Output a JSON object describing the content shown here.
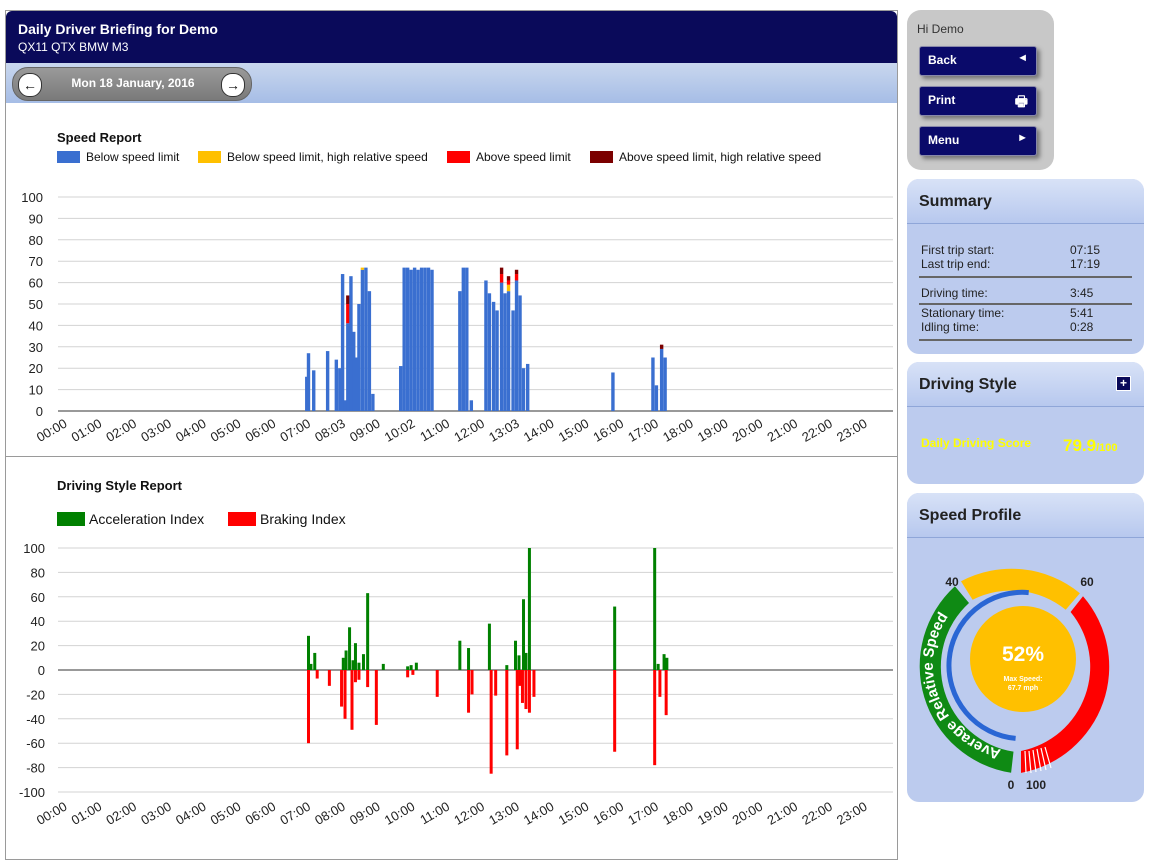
{
  "header": {
    "title": "Daily Driver Briefing for Demo",
    "vehicle": "QX11 QTX BMW M3"
  },
  "date_nav": {
    "date": "Mon 18 January, 2016",
    "prev_icon": "arrow-left-icon",
    "next_icon": "arrow-right-icon"
  },
  "nav": {
    "greeting": "Hi Demo",
    "buttons": [
      {
        "label": "Back",
        "icon": "triangle-left-icon",
        "glyph": "◄"
      },
      {
        "label": "Print",
        "icon": "printer-icon",
        "glyph": "🖶"
      },
      {
        "label": "Menu",
        "icon": "triangle-right-icon",
        "glyph": "►"
      }
    ]
  },
  "summary": {
    "title": "Summary",
    "rows": [
      {
        "label": "First trip start:",
        "value": "07:15"
      },
      {
        "label": "Last trip end:",
        "value": "17:19"
      },
      {
        "label": "Driving time:",
        "value": "3:45"
      },
      {
        "label": "Stationary time:",
        "value": "5:41"
      },
      {
        "label": "Idling time:",
        "value": "0:28"
      }
    ]
  },
  "driving_style": {
    "title": "Driving Style",
    "score_label": "Daily Driving Score",
    "score": "79.9",
    "score_max": "/100",
    "expand_icon": "plus-icon"
  },
  "speed_profile": {
    "title": "Speed Profile",
    "gauge_label": "Average Relative Speed",
    "percent": "52%",
    "max_speed_label": "Max Speed:",
    "max_speed_value": "67.7 mph",
    "percent_value": 52,
    "scale_labels": [
      "0",
      "40",
      "60",
      "100"
    ]
  },
  "colors": {
    "below": "#3a6fd0",
    "below_high": "#ffc000",
    "above": "#ff0000",
    "above_high": "#7b0000",
    "accel": "#008000",
    "brake": "#ff0000",
    "header": "#0a0a5a",
    "score": "#ffff00"
  },
  "chart_data": [
    {
      "type": "bar",
      "title": "Speed Report",
      "legend": [
        "Below speed limit",
        "Below speed limit, high relative speed",
        "Above speed limit",
        "Above speed limit, high relative speed"
      ],
      "ylim": [
        0,
        100
      ],
      "yticks": [
        0,
        10,
        20,
        30,
        40,
        50,
        60,
        70,
        80,
        90,
        100
      ],
      "xticks": [
        "00:00",
        "01:00",
        "02:00",
        "03:00",
        "04:00",
        "05:00",
        "06:00",
        "07:00",
        "08:03",
        "09:00",
        "10:02",
        "11:00",
        "12:00",
        "13:03",
        "14:00",
        "15:00",
        "16:00",
        "17:00",
        "18:00",
        "19:00",
        "20:00",
        "21:00",
        "22:00",
        "23:00"
      ],
      "bars": [
        {
          "t": 7.15,
          "v": 16
        },
        {
          "t": 7.2,
          "v": 27
        },
        {
          "t": 7.35,
          "v": 19
        },
        {
          "t": 7.75,
          "v": 28
        },
        {
          "t": 8.0,
          "v": 24
        },
        {
          "t": 8.1,
          "v": 20
        },
        {
          "t": 8.18,
          "v": 64
        },
        {
          "t": 8.25,
          "v": 5
        },
        {
          "t": 8.33,
          "v": 41,
          "above": [
            41,
            50
          ],
          "above_high": [
            50,
            54
          ]
        },
        {
          "t": 8.42,
          "v": 63
        },
        {
          "t": 8.5,
          "v": 37
        },
        {
          "t": 8.58,
          "v": 25
        },
        {
          "t": 8.65,
          "v": 50
        },
        {
          "t": 8.75,
          "v": 66,
          "below_high": [
            66,
            67
          ]
        },
        {
          "t": 8.85,
          "v": 67
        },
        {
          "t": 8.95,
          "v": 56
        },
        {
          "t": 9.05,
          "v": 8
        },
        {
          "t": 9.85,
          "v": 21
        },
        {
          "t": 9.95,
          "v": 67
        },
        {
          "t": 10.05,
          "v": 67
        },
        {
          "t": 10.15,
          "v": 66
        },
        {
          "t": 10.25,
          "v": 67
        },
        {
          "t": 10.35,
          "v": 66
        },
        {
          "t": 10.45,
          "v": 67
        },
        {
          "t": 10.55,
          "v": 67
        },
        {
          "t": 10.65,
          "v": 67
        },
        {
          "t": 10.75,
          "v": 66
        },
        {
          "t": 11.55,
          "v": 56
        },
        {
          "t": 11.65,
          "v": 67
        },
        {
          "t": 11.75,
          "v": 67
        },
        {
          "t": 11.88,
          "v": 5
        },
        {
          "t": 12.3,
          "v": 61
        },
        {
          "t": 12.4,
          "v": 55
        },
        {
          "t": 12.52,
          "v": 51
        },
        {
          "t": 12.62,
          "v": 47
        },
        {
          "t": 12.75,
          "v": 60,
          "above": [
            60,
            64
          ],
          "above_high": [
            64,
            67
          ]
        },
        {
          "t": 12.85,
          "v": 55
        },
        {
          "t": 12.95,
          "v": 56,
          "below_high": [
            56,
            59
          ],
          "above": [
            59,
            61
          ],
          "above_high": [
            61,
            63
          ]
        },
        {
          "t": 13.08,
          "v": 47
        },
        {
          "t": 13.18,
          "v": 61,
          "above": [
            61,
            64
          ],
          "above_high": [
            64,
            66
          ]
        },
        {
          "t": 13.28,
          "v": 54
        },
        {
          "t": 13.38,
          "v": 20
        },
        {
          "t": 13.5,
          "v": 22
        },
        {
          "t": 15.95,
          "v": 18
        },
        {
          "t": 17.1,
          "v": 25
        },
        {
          "t": 17.2,
          "v": 12
        },
        {
          "t": 17.35,
          "v": 29,
          "above_high": [
            29,
            31
          ]
        },
        {
          "t": 17.45,
          "v": 25
        }
      ]
    },
    {
      "type": "bar",
      "title": "Driving Style Report",
      "legend": [
        "Acceleration Index",
        "Braking Index"
      ],
      "ylim": [
        -100,
        100
      ],
      "yticks": [
        -100,
        -80,
        -60,
        -40,
        -20,
        0,
        20,
        40,
        60,
        80,
        100
      ],
      "xticks": [
        "00:00",
        "01:00",
        "02:00",
        "03:00",
        "04:00",
        "05:00",
        "06:00",
        "07:00",
        "08:00",
        "09:00",
        "10:00",
        "11:00",
        "12:00",
        "13:00",
        "14:00",
        "15:00",
        "16:00",
        "17:00",
        "18:00",
        "19:00",
        "20:00",
        "21:00",
        "22:00",
        "23:00"
      ],
      "acceleration": [
        {
          "t": 7.2,
          "v": 28
        },
        {
          "t": 7.27,
          "v": 5
        },
        {
          "t": 7.38,
          "v": 14
        },
        {
          "t": 8.2,
          "v": 10
        },
        {
          "t": 8.28,
          "v": 16
        },
        {
          "t": 8.38,
          "v": 35
        },
        {
          "t": 8.48,
          "v": 8
        },
        {
          "t": 8.55,
          "v": 22
        },
        {
          "t": 8.65,
          "v": 6
        },
        {
          "t": 8.78,
          "v": 13
        },
        {
          "t": 8.9,
          "v": 63
        },
        {
          "t": 9.35,
          "v": 5
        },
        {
          "t": 10.05,
          "v": 3
        },
        {
          "t": 10.15,
          "v": 4
        },
        {
          "t": 10.3,
          "v": 6
        },
        {
          "t": 11.55,
          "v": 24
        },
        {
          "t": 11.8,
          "v": 18
        },
        {
          "t": 12.4,
          "v": 38
        },
        {
          "t": 12.9,
          "v": 4
        },
        {
          "t": 13.15,
          "v": 24
        },
        {
          "t": 13.25,
          "v": 12
        },
        {
          "t": 13.38,
          "v": 58
        },
        {
          "t": 13.45,
          "v": 14
        },
        {
          "t": 13.55,
          "v": 100
        },
        {
          "t": 16.0,
          "v": 52
        },
        {
          "t": 17.15,
          "v": 100
        },
        {
          "t": 17.25,
          "v": 5
        },
        {
          "t": 17.42,
          "v": 13
        },
        {
          "t": 17.5,
          "v": 10
        }
      ],
      "braking": [
        {
          "t": 7.2,
          "v": -60
        },
        {
          "t": 7.45,
          "v": -7
        },
        {
          "t": 7.8,
          "v": -13
        },
        {
          "t": 8.15,
          "v": -30
        },
        {
          "t": 8.25,
          "v": -40
        },
        {
          "t": 8.45,
          "v": -49
        },
        {
          "t": 8.55,
          "v": -10
        },
        {
          "t": 8.65,
          "v": -8
        },
        {
          "t": 8.9,
          "v": -14
        },
        {
          "t": 9.15,
          "v": -45
        },
        {
          "t": 10.05,
          "v": -6
        },
        {
          "t": 10.2,
          "v": -4
        },
        {
          "t": 10.9,
          "v": -22
        },
        {
          "t": 11.8,
          "v": -35
        },
        {
          "t": 11.9,
          "v": -20
        },
        {
          "t": 12.45,
          "v": -85
        },
        {
          "t": 12.58,
          "v": -21
        },
        {
          "t": 12.9,
          "v": -70
        },
        {
          "t": 13.2,
          "v": -65
        },
        {
          "t": 13.28,
          "v": -13
        },
        {
          "t": 13.35,
          "v": -27
        },
        {
          "t": 13.45,
          "v": -32
        },
        {
          "t": 13.55,
          "v": -35
        },
        {
          "t": 13.68,
          "v": -22
        },
        {
          "t": 16.0,
          "v": -67
        },
        {
          "t": 17.15,
          "v": -78
        },
        {
          "t": 17.3,
          "v": -22
        },
        {
          "t": 17.48,
          "v": -37
        }
      ]
    }
  ]
}
